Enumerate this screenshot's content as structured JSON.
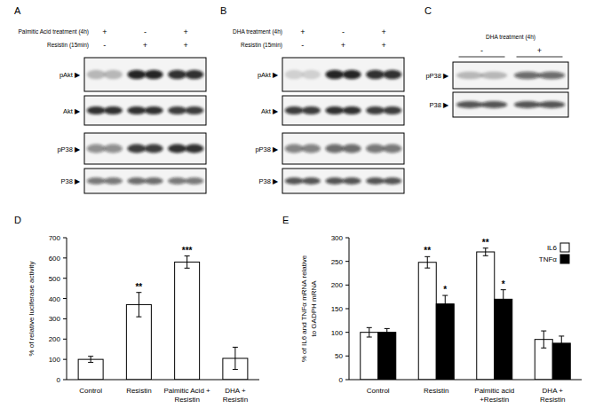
{
  "blots": [
    {
      "panel": "A",
      "header_rows": [
        {
          "label": "Palmitic Acid treatment (4h)",
          "lanes": [
            "+",
            "-",
            "+"
          ]
        },
        {
          "label": "Resistin (15min)",
          "lanes": [
            "-",
            "+",
            "+"
          ]
        }
      ],
      "rows": [
        "pAkt ▶",
        "Akt ▶",
        "pP38 ▶",
        "P38 ▶"
      ]
    },
    {
      "panel": "B",
      "header_rows": [
        {
          "label": "DHA treatment (4h)",
          "lanes": [
            "+",
            "-",
            "+"
          ]
        },
        {
          "label": "Resistin (15min)",
          "lanes": [
            "-",
            "+",
            "+"
          ]
        }
      ],
      "rows": [
        "pAkt ▶",
        "Akt ▶",
        "pP38 ▶",
        "P38 ▶"
      ]
    },
    {
      "panel": "C",
      "header_rows": [
        {
          "label": "DHA treatment (4h)",
          "lanes": [
            "-",
            "+"
          ]
        }
      ],
      "rows": [
        "pP38 ▶",
        "P38 ▶"
      ]
    }
  ],
  "chart_data": [
    {
      "type": "bar",
      "panel": "D",
      "y_label": "% of relative luciferase activity",
      "categories": [
        "Control",
        "Resistin",
        "Palmitic Acid +\nResistin",
        "DHA +\nResistin"
      ],
      "values": [
        100,
        370,
        580,
        105
      ],
      "errors": [
        15,
        60,
        30,
        55
      ],
      "significance": [
        null,
        "**",
        "***",
        null
      ],
      "color": "#ffffff",
      "ylim": [
        0,
        700
      ],
      "yticks": [
        0,
        100,
        200,
        300,
        400,
        500,
        600,
        700
      ],
      "grid": false
    },
    {
      "type": "bar",
      "panel": "E",
      "y_label": "% of IL6 and TNFα mRNA relative\nto GADPH mRNA",
      "categories": [
        "Control",
        "Resistin",
        "Palmitic acid\n+Resistin",
        "DHA +\nResistin"
      ],
      "series": [
        {
          "name": "IL6",
          "color": "#ffffff",
          "values": [
            100,
            248,
            270,
            85
          ],
          "errors": [
            10,
            12,
            8,
            18
          ],
          "significance": [
            null,
            "**",
            "**",
            null
          ]
        },
        {
          "name": "TNFα",
          "color": "#000000",
          "values": [
            100,
            160,
            170,
            77
          ],
          "errors": [
            8,
            18,
            20,
            15
          ],
          "significance": [
            null,
            "*",
            "*",
            null
          ]
        }
      ],
      "ylim": [
        0,
        300
      ],
      "yticks": [
        0,
        50,
        100,
        150,
        200,
        250,
        300
      ],
      "legend": "top-right",
      "grid": false
    }
  ]
}
